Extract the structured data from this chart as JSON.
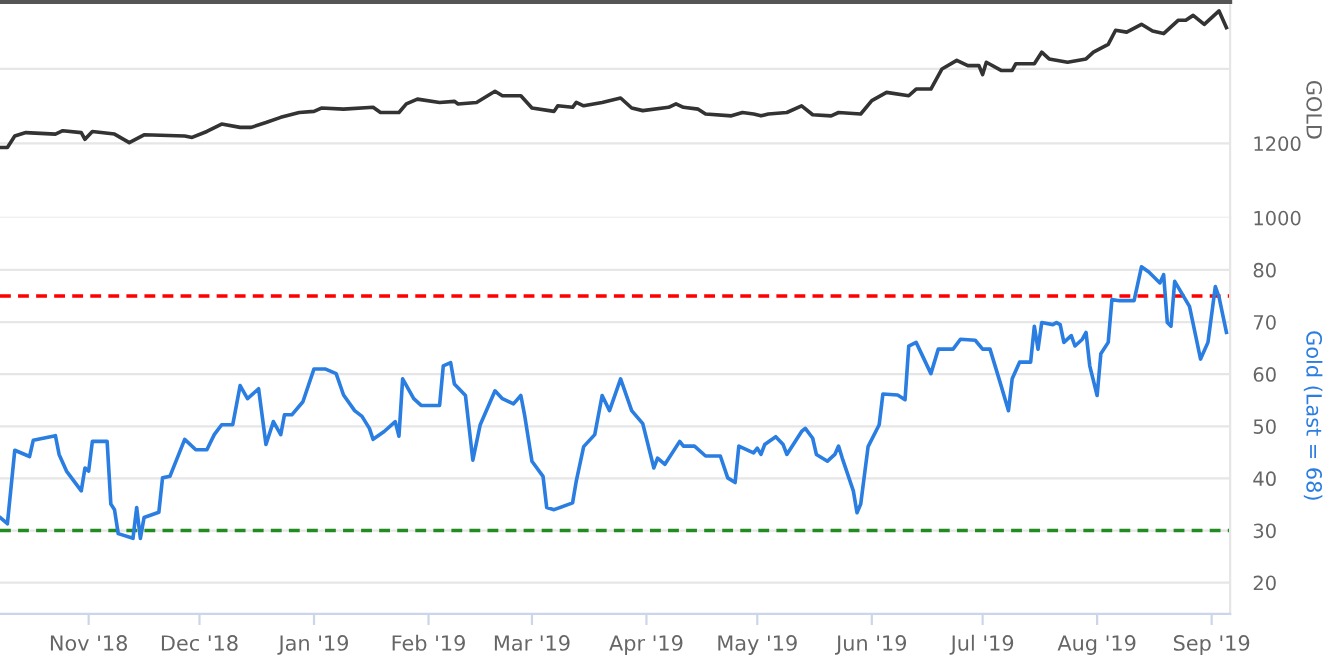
{
  "chart_data": [
    {
      "type": "line",
      "ylabel": "GOLD",
      "tick_labels": "y",
      "grid": "y",
      "xlim": [
        "2018-10-08",
        "2019-09-06"
      ],
      "ylim": [
        1000,
        1580
      ],
      "yticks": [
        1000,
        1200,
        {
          "value": 1400,
          "label": null
        }
      ],
      "series": [
        {
          "color": "#333333",
          "x": [
            "2018-10-08",
            "2018-10-10",
            "2018-10-12",
            "2018-10-15",
            "2018-10-23",
            "2018-10-25",
            "2018-10-30",
            "2018-10-31",
            "2018-11-02",
            "2018-11-08",
            "2018-11-12",
            "2018-11-16",
            "2018-11-27",
            "2018-11-29",
            "2018-12-03",
            "2018-12-07",
            "2018-12-12",
            "2018-12-15",
            "2018-12-19",
            "2018-12-23",
            "2018-12-28",
            "2019-01-01",
            "2019-01-03",
            "2019-01-09",
            "2019-01-17",
            "2019-01-19",
            "2019-01-24",
            "2019-01-26",
            "2019-01-29",
            "2019-02-04",
            "2019-02-08",
            "2019-02-09",
            "2019-02-14",
            "2019-02-19",
            "2019-02-21",
            "2019-02-26",
            "2019-03-01",
            "2019-03-07",
            "2019-03-08",
            "2019-03-12",
            "2019-03-13",
            "2019-03-15",
            "2019-03-20",
            "2019-03-25",
            "2019-03-28",
            "2019-03-31",
            "2019-04-07",
            "2019-04-09",
            "2019-04-11",
            "2019-04-15",
            "2019-04-17",
            "2019-04-24",
            "2019-04-27",
            "2019-04-30",
            "2019-05-02",
            "2019-05-04",
            "2019-05-09",
            "2019-05-13",
            "2019-05-16",
            "2019-05-21",
            "2019-05-23",
            "2019-05-29",
            "2019-06-01",
            "2019-06-05",
            "2019-06-11",
            "2019-06-13",
            "2019-06-17",
            "2019-06-20",
            "2019-06-24",
            "2019-06-27",
            "2019-06-30",
            "2019-07-01",
            "2019-07-02",
            "2019-07-06",
            "2019-07-09",
            "2019-07-10",
            "2019-07-15",
            "2019-07-17",
            "2019-07-19",
            "2019-07-24",
            "2019-07-29",
            "2019-07-31",
            "2019-08-04",
            "2019-08-06",
            "2019-08-09",
            "2019-08-13",
            "2019-08-16",
            "2019-08-19",
            "2019-08-23",
            "2019-08-25",
            "2019-08-27",
            "2019-08-30",
            "2019-09-03",
            "2019-09-05"
          ],
          "values": [
            1189,
            1189,
            1220,
            1229,
            1225,
            1234,
            1229,
            1211,
            1232,
            1225,
            1202,
            1223,
            1220,
            1216,
            1232,
            1252,
            1243,
            1243,
            1256,
            1270,
            1283,
            1286,
            1295,
            1292,
            1297,
            1283,
            1283,
            1306,
            1319,
            1310,
            1313,
            1306,
            1310,
            1340,
            1328,
            1328,
            1295,
            1286,
            1301,
            1297,
            1310,
            1301,
            1310,
            1322,
            1295,
            1288,
            1297,
            1306,
            1297,
            1292,
            1279,
            1274,
            1283,
            1279,
            1274,
            1279,
            1283,
            1301,
            1277,
            1274,
            1283,
            1279,
            1315,
            1337,
            1328,
            1346,
            1346,
            1400,
            1423,
            1409,
            1409,
            1385,
            1418,
            1396,
            1396,
            1414,
            1414,
            1445,
            1427,
            1418,
            1427,
            1445,
            1466,
            1504,
            1499,
            1520,
            1502,
            1495,
            1531,
            1531,
            1544,
            1520,
            1556,
            1511
          ]
        }
      ]
    },
    {
      "type": "line",
      "ylabel": "Gold (Last = 68)",
      "grid": "y",
      "xlim": [
        "2018-10-08",
        "2019-09-06"
      ],
      "ylim": [
        14,
        90
      ],
      "yticks": [
        20,
        30,
        40,
        50,
        60,
        70,
        80
      ],
      "xticks": [
        {
          "value": "2018-11-01",
          "label": "Nov '18"
        },
        {
          "value": "2018-12-01",
          "label": "Dec '18"
        },
        {
          "value": "2019-01-01",
          "label": "Jan '19"
        },
        {
          "value": "2019-02-01",
          "label": "Feb '19"
        },
        {
          "value": "2019-03-01",
          "label": "Mar '19"
        },
        {
          "value": "2019-04-01",
          "label": "Apr '19"
        },
        {
          "value": "2019-05-01",
          "label": "May '19"
        },
        {
          "value": "2019-06-01",
          "label": "Jun '19"
        },
        {
          "value": "2019-07-01",
          "label": "Jul '19"
        },
        {
          "value": "2019-08-01",
          "label": "Aug '19"
        },
        {
          "value": "2019-09-01",
          "label": "Sep '19"
        }
      ],
      "ref_lines": [
        {
          "axis": "y",
          "value": 75,
          "color": "#ff0000",
          "line_style": "dashed"
        },
        {
          "axis": "y",
          "value": 30,
          "color": "#228b22",
          "line_style": "dashed"
        }
      ],
      "series": [
        {
          "color": "#2a7de1",
          "x": [
            "2018-10-08",
            "2018-10-10",
            "2018-10-12",
            "2018-10-16",
            "2018-10-17",
            "2018-10-23",
            "2018-10-24",
            "2018-10-26",
            "2018-10-30",
            "2018-10-31",
            "2018-11-01",
            "2018-11-02",
            "2018-11-06",
            "2018-11-07",
            "2018-11-08",
            "2018-11-09",
            "2018-11-13",
            "2018-11-14",
            "2018-11-15",
            "2018-11-16",
            "2018-11-20",
            "2018-11-21",
            "2018-11-23",
            "2018-11-27",
            "2018-11-30",
            "2018-12-03",
            "2018-12-05",
            "2018-12-07",
            "2018-12-10",
            "2018-12-12",
            "2018-12-14",
            "2018-12-17",
            "2018-12-19",
            "2018-12-21",
            "2018-12-23",
            "2018-12-24",
            "2018-12-26",
            "2018-12-29",
            "2019-01-01",
            "2019-01-04",
            "2019-01-07",
            "2019-01-09",
            "2019-01-12",
            "2019-01-14",
            "2019-01-16",
            "2019-01-17",
            "2019-01-20",
            "2019-01-23",
            "2019-01-24",
            "2019-01-25",
            "2019-01-28",
            "2019-01-30",
            "2019-02-04",
            "2019-02-05",
            "2019-02-07",
            "2019-02-08",
            "2019-02-11",
            "2019-02-13",
            "2019-02-15",
            "2019-02-19",
            "2019-02-21",
            "2019-02-24",
            "2019-02-26",
            "2019-02-27",
            "2019-03-01",
            "2019-03-04",
            "2019-03-05",
            "2019-03-07",
            "2019-03-12",
            "2019-03-13",
            "2019-03-15",
            "2019-03-18",
            "2019-03-20",
            "2019-03-22",
            "2019-03-25",
            "2019-03-28",
            "2019-03-31",
            "2019-04-03",
            "2019-04-04",
            "2019-04-06",
            "2019-04-10",
            "2019-04-11",
            "2019-04-14",
            "2019-04-17",
            "2019-04-21",
            "2019-04-23",
            "2019-04-25",
            "2019-04-26",
            "2019-04-30",
            "2019-05-01",
            "2019-05-02",
            "2019-05-03",
            "2019-05-06",
            "2019-05-08",
            "2019-05-09",
            "2019-05-13",
            "2019-05-14",
            "2019-05-16",
            "2019-05-17",
            "2019-05-20",
            "2019-05-22",
            "2019-05-23",
            "2019-05-24",
            "2019-05-27",
            "2019-05-28",
            "2019-05-29",
            "2019-05-31",
            "2019-06-03",
            "2019-06-04",
            "2019-06-08",
            "2019-06-10",
            "2019-06-11",
            "2019-06-13",
            "2019-06-17",
            "2019-06-19",
            "2019-06-23",
            "2019-06-25",
            "2019-06-29",
            "2019-07-01",
            "2019-07-03",
            "2019-07-06",
            "2019-07-08",
            "2019-07-09",
            "2019-07-11",
            "2019-07-14",
            "2019-07-15",
            "2019-07-16",
            "2019-07-17",
            "2019-07-20",
            "2019-07-21",
            "2019-07-22",
            "2019-07-23",
            "2019-07-25",
            "2019-07-26",
            "2019-07-28",
            "2019-07-29",
            "2019-07-30",
            "2019-08-01",
            "2019-08-02",
            "2019-08-04",
            "2019-08-05",
            "2019-08-07",
            "2019-08-11",
            "2019-08-13",
            "2019-08-15",
            "2019-08-18",
            "2019-08-19",
            "2019-08-20",
            "2019-08-21",
            "2019-08-22",
            "2019-08-26",
            "2019-08-29",
            "2019-08-31",
            "2019-09-02",
            "2019-09-03",
            "2019-09-05"
          ],
          "values": [
            32.5,
            31.3,
            45.4,
            44.2,
            47.3,
            48.2,
            44.6,
            41.4,
            37.6,
            42,
            41.4,
            47.1,
            47.1,
            35.1,
            34,
            29.4,
            28.5,
            34.4,
            28.5,
            32.5,
            33.5,
            40.1,
            40.4,
            47.5,
            45.5,
            45.5,
            48.4,
            50.3,
            50.3,
            57.8,
            55.3,
            57.2,
            46.5,
            50.9,
            48.4,
            52.2,
            52.2,
            54.7,
            61,
            61,
            60.1,
            56,
            53,
            51.9,
            49.6,
            47.5,
            49,
            50.9,
            48.1,
            59.1,
            55.3,
            54,
            54,
            61.6,
            62.2,
            58.1,
            55.9,
            43.5,
            50.3,
            56.8,
            55.3,
            54.3,
            55.9,
            52.2,
            43.3,
            40.4,
            34.4,
            34,
            35.3,
            39.5,
            46.1,
            48.4,
            55.9,
            53,
            59.1,
            53,
            50.5,
            42,
            43.9,
            42.7,
            47.1,
            46.2,
            46.2,
            44.3,
            44.3,
            40.1,
            39.2,
            46.2,
            44.9,
            45.8,
            44.6,
            46.5,
            48,
            46.5,
            44.6,
            49,
            49.6,
            47.7,
            44.6,
            43.3,
            44.6,
            46.2,
            43.9,
            37.6,
            33.4,
            35.1,
            46.1,
            50.3,
            56.2,
            56,
            55.1,
            65.4,
            66.1,
            60.1,
            64.8,
            64.8,
            66.7,
            66.5,
            64.8,
            64.8,
            57.8,
            53,
            59.1,
            62.3,
            62.3,
            69.2,
            64.8,
            69.9,
            69.5,
            69.9,
            69.5,
            66.1,
            67.4,
            65.4,
            66.7,
            68,
            61.6,
            55.9,
            63.9,
            66.1,
            74.3,
            74.1,
            74.1,
            80.6,
            79.6,
            77.5,
            79.1,
            69.9,
            69.2,
            77.8,
            73,
            62.9,
            66.1,
            76.8,
            74.8,
            68
          ]
        }
      ]
    }
  ]
}
